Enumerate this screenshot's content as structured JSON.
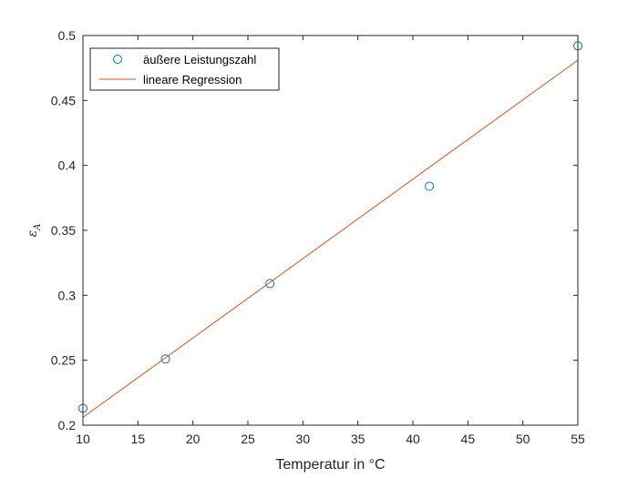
{
  "chart_data": {
    "type": "scatter",
    "xlabel": "Temperatur in °C",
    "ylabel": "ε_A",
    "xlim": [
      10,
      55
    ],
    "ylim": [
      0.2,
      0.5
    ],
    "x_ticks": [
      10,
      15,
      20,
      25,
      30,
      35,
      40,
      45,
      50,
      55
    ],
    "y_ticks": [
      0.2,
      0.25,
      0.3,
      0.35,
      0.4,
      0.45,
      0.5
    ],
    "y_tick_labels": [
      "0.2",
      "0.25",
      "0.3",
      "0.35",
      "0.4",
      "0.45",
      "0.5"
    ],
    "grid": false,
    "legend_position": "top-left",
    "series": [
      {
        "name": "äußere Leistungszahl",
        "kind": "markers",
        "marker": "circle",
        "color": "#0072BD",
        "x": [
          10,
          17.5,
          27,
          41.5,
          55
        ],
        "y": [
          0.213,
          0.251,
          0.309,
          0.384,
          0.492
        ]
      },
      {
        "name": "lineare Regression",
        "kind": "line",
        "color": "#D95319",
        "x": [
          10,
          55
        ],
        "y": [
          0.206,
          0.481
        ]
      }
    ]
  }
}
